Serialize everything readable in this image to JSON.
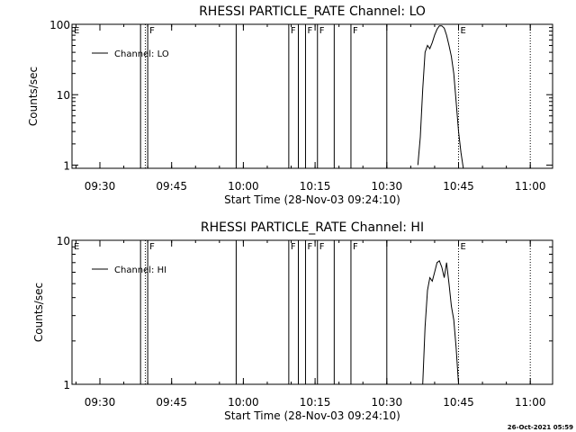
{
  "chart_data": [
    {
      "type": "line",
      "title": "RHESSI PARTICLE_RATE Channel: LO",
      "xlabel": "Start Time (28-Nov-03 09:24:10)",
      "ylabel": "Counts/sec",
      "yscale": "log",
      "ylim": [
        0.9,
        100
      ],
      "xlim": [
        "09:24:10",
        "11:04:40"
      ],
      "xticks": [
        "09:30",
        "09:45",
        "10:00",
        "10:15",
        "10:30",
        "10:45",
        "11:00"
      ],
      "yticks": [
        "1",
        "10",
        "100"
      ],
      "legend": {
        "placement": "top-left",
        "label": "Channel: LO"
      },
      "series": [
        {
          "name": "Channel: LO",
          "x": [
            "10:36:30",
            "10:37:00",
            "10:37:30",
            "10:38:00",
            "10:38:30",
            "10:39:00",
            "10:39:30",
            "10:40:00",
            "10:40:30",
            "10:41:00",
            "10:41:30",
            "10:42:00",
            "10:42:30",
            "10:43:00",
            "10:43:30",
            "10:44:00",
            "10:44:30",
            "10:45:00",
            "10:45:30",
            "10:46:00"
          ],
          "y": [
            1,
            2.5,
            12,
            40,
            50,
            45,
            55,
            70,
            85,
            95,
            95,
            88,
            70,
            50,
            35,
            20,
            8,
            3,
            1.5,
            0.9
          ]
        }
      ],
      "markers": {
        "solid": [
          {
            "time": "09:38:30",
            "label": ""
          },
          {
            "time": "09:40:00",
            "label": "F"
          },
          {
            "time": "09:58:30",
            "label": ""
          },
          {
            "time": "10:09:30",
            "label": "F"
          },
          {
            "time": "10:11:30",
            "label": ""
          },
          {
            "time": "10:13:00",
            "label": "F"
          },
          {
            "time": "10:15:30",
            "label": "F"
          },
          {
            "time": "10:19:00",
            "label": ""
          },
          {
            "time": "10:22:30",
            "label": "F"
          },
          {
            "time": "10:30:00",
            "label": ""
          }
        ],
        "dotted": [
          {
            "time": "09:39:30",
            "label": ""
          },
          {
            "time": "10:45:00",
            "label": "E"
          },
          {
            "time": "11:00:00",
            "label": ""
          }
        ],
        "edge_label": "E"
      }
    },
    {
      "type": "line",
      "title": "RHESSI PARTICLE_RATE Channel: HI",
      "xlabel": "Start Time (28-Nov-03 09:24:10)",
      "ylabel": "Counts/sec",
      "yscale": "log",
      "ylim": [
        1,
        10
      ],
      "xlim": [
        "09:24:10",
        "11:04:40"
      ],
      "xticks": [
        "09:30",
        "09:45",
        "10:00",
        "10:15",
        "10:30",
        "10:45",
        "11:00"
      ],
      "yticks": [
        "1",
        "10"
      ],
      "legend": {
        "placement": "top-left",
        "label": "Channel: HI"
      },
      "series": [
        {
          "name": "Channel: HI",
          "x": [
            "10:37:30",
            "10:38:00",
            "10:38:30",
            "10:39:00",
            "10:39:30",
            "10:40:00",
            "10:40:30",
            "10:41:00",
            "10:41:30",
            "10:42:00",
            "10:42:30",
            "10:43:00",
            "10:43:30",
            "10:44:00",
            "10:44:30",
            "10:45:00"
          ],
          "y": [
            1,
            2.5,
            4.5,
            5.5,
            5.2,
            6,
            7,
            7.2,
            6.5,
            5.5,
            7,
            5,
            3.5,
            2.8,
            1.8,
            1
          ]
        }
      ],
      "markers": {
        "solid": [
          {
            "time": "09:38:30",
            "label": ""
          },
          {
            "time": "09:40:00",
            "label": "F"
          },
          {
            "time": "09:58:30",
            "label": ""
          },
          {
            "time": "10:09:30",
            "label": "F"
          },
          {
            "time": "10:11:30",
            "label": ""
          },
          {
            "time": "10:13:00",
            "label": "F"
          },
          {
            "time": "10:15:30",
            "label": "F"
          },
          {
            "time": "10:19:00",
            "label": ""
          },
          {
            "time": "10:22:30",
            "label": "F"
          },
          {
            "time": "10:30:00",
            "label": ""
          }
        ],
        "dotted": [
          {
            "time": "09:39:30",
            "label": ""
          },
          {
            "time": "10:45:00",
            "label": "E"
          },
          {
            "time": "11:00:00",
            "label": ""
          }
        ],
        "edge_label": "E"
      }
    }
  ],
  "footer": {
    "timestamp": "26-Oct-2021 05:59"
  }
}
